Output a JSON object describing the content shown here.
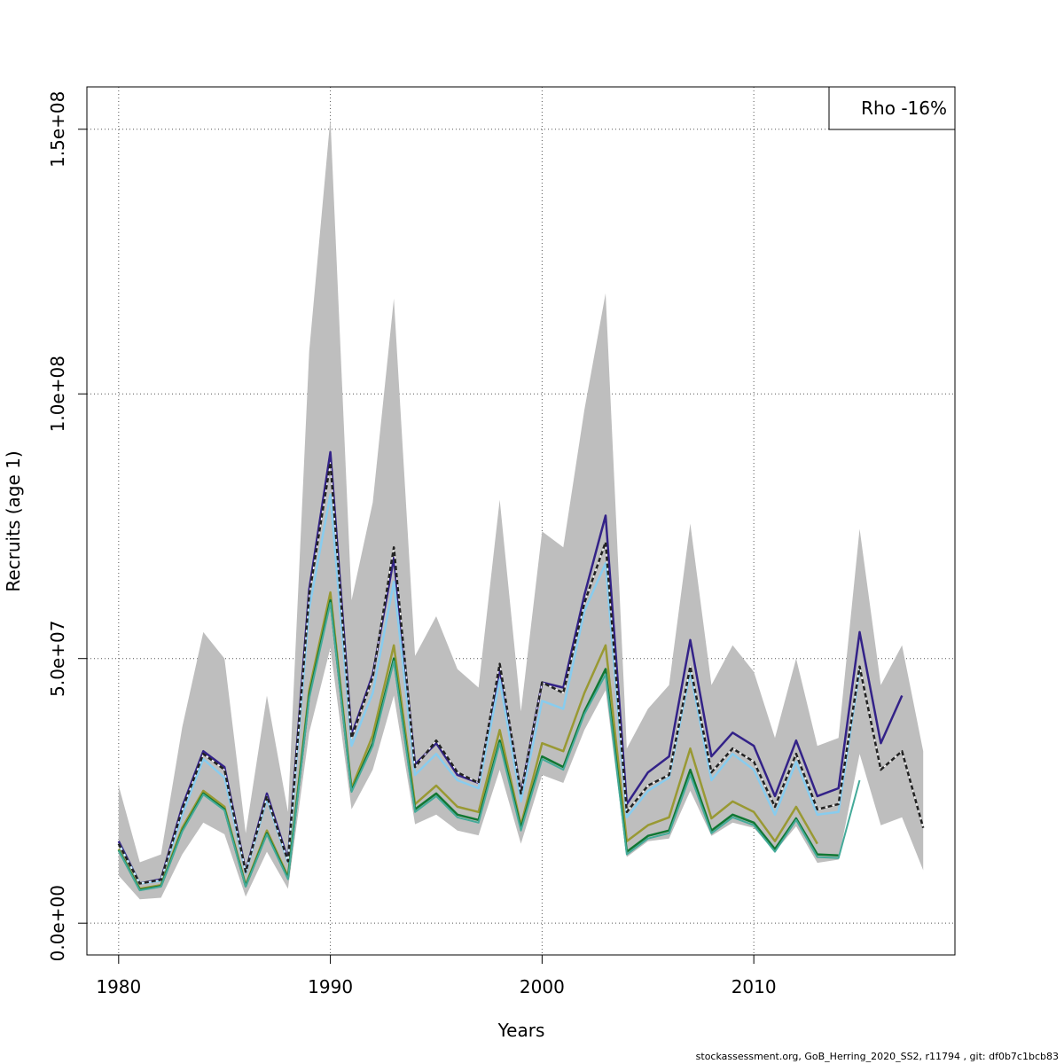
{
  "chart_data": {
    "type": "line",
    "title": "",
    "xlabel": "Years",
    "ylabel": "Recruits (age 1)",
    "xlim": [
      1978.5,
      2019.5
    ],
    "ylim": [
      -6000000,
      158000000
    ],
    "x_ticks": [
      1980,
      1990,
      2000,
      2010
    ],
    "x_tick_labels": [
      "1980",
      "1990",
      "2000",
      "2010"
    ],
    "y_ticks": [
      0,
      50000000,
      100000000,
      150000000
    ],
    "y_tick_labels": [
      "0.0e+00",
      "5.0e+07",
      "1.0e+08",
      "1.5e+08"
    ],
    "grid": true,
    "legend": {
      "position": "top-right",
      "text": "Rho -16%"
    },
    "footer": "stockassessment.org, GoB_Herring_2020_SS2, r11794 , git: df0b7c1bcb83",
    "colors": {
      "band": "#bebebe",
      "ref": "#222222",
      "purple": "#332288",
      "lightblue": "#88ccee",
      "olive": "#999933",
      "darkgreen": "#117733",
      "teal": "#44aa99"
    },
    "band": {
      "x": [
        1980,
        1981,
        1982,
        1983,
        1984,
        1985,
        1986,
        1987,
        1988,
        1989,
        1990,
        1991,
        1992,
        1993,
        1994,
        1995,
        1996,
        1997,
        1998,
        1999,
        2000,
        2001,
        2002,
        2003,
        2004,
        2005,
        2006,
        2007,
        2008,
        2009,
        2010,
        2011,
        2012,
        2013,
        2014,
        2015,
        2016,
        2017,
        2018
      ],
      "lower": [
        9000000,
        4500000,
        4800000,
        13000000,
        19000000,
        16800000,
        5000000,
        13500000,
        6500000,
        36000000,
        52000000,
        21500000,
        29000000,
        43000000,
        18700000,
        20500000,
        17500000,
        16600000,
        29000000,
        15000000,
        28000000,
        26500000,
        36500000,
        44000000,
        12500000,
        15500000,
        16000000,
        25000000,
        16500000,
        19000000,
        18000000,
        13500000,
        18300000,
        11400000,
        12000000,
        32000000,
        18500000,
        20000000,
        10000000
      ],
      "upper": [
        26000000,
        11500000,
        13000000,
        37000000,
        55000000,
        50000000,
        17000000,
        43000000,
        21000000,
        108000000,
        152000000,
        61000000,
        79500000,
        118000000,
        50500000,
        58000000,
        48000000,
        44500000,
        80000000,
        40000000,
        74000000,
        71000000,
        97000000,
        119000000,
        33000000,
        40500000,
        45000000,
        75500000,
        45000000,
        52500000,
        47500000,
        35000000,
        50000000,
        33500000,
        35000000,
        74500000,
        45000000,
        52500000,
        32500000
      ]
    },
    "series": [
      {
        "name": "",
        "color": "purple",
        "width": 2.5,
        "dash": false,
        "x": [
          1980,
          1981,
          1982,
          1983,
          1984,
          1985,
          1986,
          1987,
          1988,
          1989,
          1990,
          1991,
          1992,
          1993,
          1994,
          1995,
          1996,
          1997,
          1998,
          1999,
          2000,
          2001,
          2002,
          2003,
          2004,
          2005,
          2006,
          2007,
          2008,
          2009,
          2010,
          2011,
          2012,
          2013,
          2014,
          2015,
          2016,
          2017
        ],
        "y": [
          15500000,
          7500000,
          8300000,
          22000000,
          32500000,
          29500000,
          9800000,
          24500000,
          12000000,
          63000000,
          89000000,
          35500000,
          47000000,
          69000000,
          30000000,
          34000000,
          28000000,
          26500000,
          48000000,
          24500000,
          45500000,
          44500000,
          62000000,
          77000000,
          22500000,
          28500000,
          31500000,
          53500000,
          31500000,
          36000000,
          33500000,
          24000000,
          34500000,
          24000000,
          25500000,
          55000000,
          34000000,
          43000000
        ]
      },
      {
        "name": "",
        "color": "lightblue",
        "width": 2.5,
        "dash": false,
        "x": [
          1980,
          1981,
          1982,
          1983,
          1984,
          1985,
          1986,
          1987,
          1988,
          1989,
          1990,
          1991,
          1992,
          1993,
          1994,
          1995,
          1996,
          1997,
          1998,
          1999,
          2000,
          2001,
          2002,
          2003,
          2004,
          2005,
          2006,
          2007,
          2008,
          2009,
          2010,
          2011,
          2012,
          2013,
          2014,
          2015
        ],
        "y": [
          15000000,
          7500000,
          8000000,
          20500000,
          31000000,
          27500000,
          9500000,
          23500000,
          11500000,
          59500000,
          81000000,
          33500000,
          43500000,
          64500000,
          28000000,
          32000000,
          27000000,
          25500000,
          46000000,
          23000000,
          42000000,
          40500000,
          59000000,
          68000000,
          20000000,
          25000000,
          27500000,
          47500000,
          27000000,
          32000000,
          29000000,
          20500000,
          30500000,
          20500000,
          21000000,
          48000000
        ]
      },
      {
        "name": "",
        "color": "olive",
        "width": 2.5,
        "dash": false,
        "x": [
          1980,
          1981,
          1982,
          1983,
          1984,
          1985,
          1986,
          1987,
          1988,
          1989,
          1990,
          1991,
          1992,
          1993,
          1994,
          1995,
          1996,
          1997,
          1998,
          1999,
          2000,
          2001,
          2002,
          2003,
          2004,
          2005,
          2006,
          2007,
          2008,
          2009,
          2010,
          2011,
          2012,
          2013
        ],
        "y": [
          14000000,
          6500000,
          7200000,
          18000000,
          25000000,
          22000000,
          7200000,
          17500000,
          8800000,
          44000000,
          62500000,
          25500000,
          35500000,
          52500000,
          22500000,
          26000000,
          22000000,
          21000000,
          36500000,
          18500000,
          34000000,
          32500000,
          43500000,
          52500000,
          15500000,
          18500000,
          20000000,
          33000000,
          19800000,
          23000000,
          21000000,
          15500000,
          22000000,
          15000000
        ]
      },
      {
        "name": "",
        "color": "darkgreen",
        "width": 2.5,
        "dash": false,
        "x": [
          1980,
          1981,
          1982,
          1983,
          1984,
          1985,
          1986,
          1987,
          1988,
          1989,
          1990,
          1991,
          1992,
          1993,
          1994,
          1995,
          1996,
          1997,
          1998,
          1999,
          2000,
          2001,
          2002,
          2003,
          2004,
          2005,
          2006,
          2007,
          2008,
          2009,
          2010,
          2011,
          2012,
          2013,
          2014
        ],
        "y": [
          13800000,
          6300000,
          7000000,
          17500000,
          24500000,
          21500000,
          7000000,
          17000000,
          8500000,
          43000000,
          61000000,
          25000000,
          34000000,
          50000000,
          21500000,
          24500000,
          20500000,
          19500000,
          34500000,
          18000000,
          31500000,
          29500000,
          40000000,
          48000000,
          13500000,
          16500000,
          17500000,
          29000000,
          17500000,
          20500000,
          19000000,
          14000000,
          19800000,
          13000000,
          12800000
        ]
      },
      {
        "name": "",
        "color": "teal",
        "width": 2,
        "dash": false,
        "x": [
          1980,
          1981,
          1982,
          1983,
          1984,
          1985,
          1986,
          1987,
          1988,
          1989,
          1990,
          1991,
          1992,
          1993,
          1994,
          1995,
          1996,
          1997,
          1998,
          1999,
          2000,
          2001,
          2002,
          2003,
          2004,
          2005,
          2006,
          2007,
          2008,
          2009,
          2010,
          2011,
          2012,
          2013,
          2014,
          2015
        ],
        "y": [
          13700000,
          6200000,
          6900000,
          17300000,
          24300000,
          21300000,
          6900000,
          16800000,
          8300000,
          42500000,
          60500000,
          24800000,
          33500000,
          49500000,
          21000000,
          24000000,
          20000000,
          19000000,
          34000000,
          17500000,
          31000000,
          29000000,
          39500000,
          47000000,
          13000000,
          16000000,
          17000000,
          28000000,
          17000000,
          20000000,
          18500000,
          13500000,
          19500000,
          12500000,
          12300000,
          27000000
        ]
      },
      {
        "name": "",
        "color": "ref",
        "width": 2.5,
        "dash": true,
        "x": [
          1980,
          1981,
          1982,
          1983,
          1984,
          1985,
          1986,
          1987,
          1988,
          1989,
          1990,
          1991,
          1992,
          1993,
          1994,
          1995,
          1996,
          1997,
          1998,
          1999,
          2000,
          2001,
          2002,
          2003,
          2004,
          2005,
          2006,
          2007,
          2008,
          2009,
          2010,
          2011,
          2012,
          2013,
          2014,
          2015,
          2016,
          2017,
          2018
        ],
        "y": [
          15000000,
          7500000,
          8200000,
          21500000,
          32000000,
          29000000,
          9700000,
          24000000,
          11700000,
          62000000,
          87000000,
          35000000,
          46500000,
          71000000,
          29500000,
          34500000,
          28500000,
          26500000,
          49000000,
          24500000,
          45500000,
          43500000,
          60500000,
          72000000,
          21000000,
          26000000,
          28000000,
          48500000,
          28500000,
          33000000,
          30500000,
          22000000,
          32000000,
          21500000,
          22500000,
          48500000,
          29000000,
          32500000,
          18000000
        ]
      }
    ]
  }
}
